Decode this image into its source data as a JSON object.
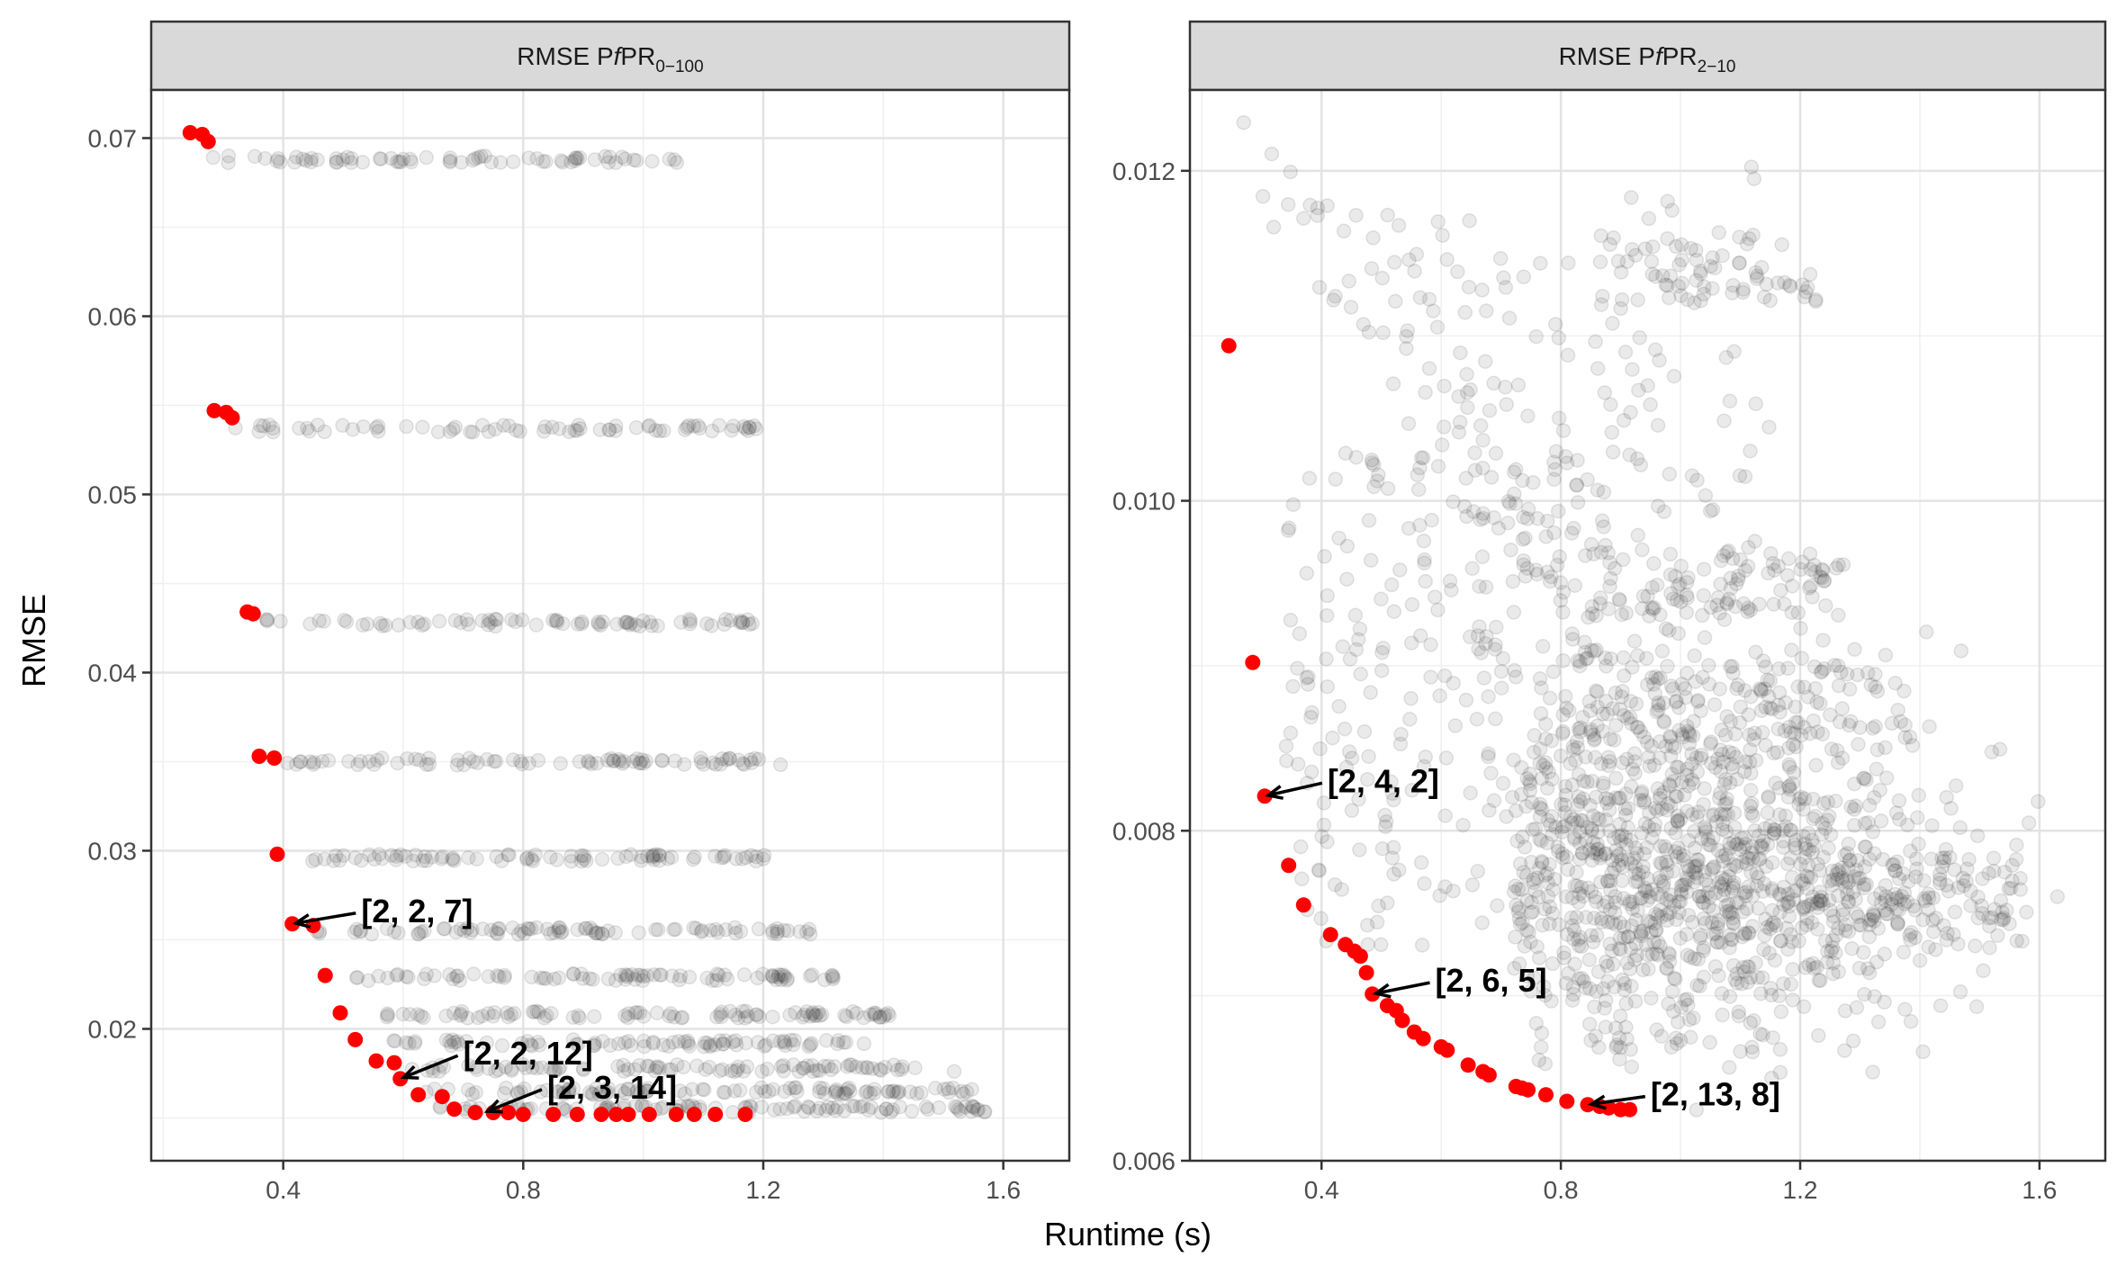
{
  "figure": {
    "xlabel": "Runtime (s)",
    "ylabel": "RMSE"
  },
  "chart_data": [
    {
      "type": "scatter",
      "strip": {
        "prefix": "RMSE P",
        "italic": "f",
        "mid": "PR",
        "subscript": "0−100"
      },
      "xlim": [
        0.18,
        1.71
      ],
      "ylim": [
        0.0126,
        0.0727
      ],
      "x_ticks": [
        0.4,
        0.8,
        1.2,
        1.6
      ],
      "x_tick_labels": [
        "0.4",
        "0.8",
        "1.2",
        "1.6"
      ],
      "y_ticks": [
        0.02,
        0.03,
        0.04,
        0.05,
        0.06,
        0.07
      ],
      "y_tick_labels": [
        "0.02",
        "0.03",
        "0.04",
        "0.05",
        "0.06",
        "0.07"
      ],
      "grid": true,
      "background_bands": [
        {
          "y": 0.0688,
          "x_range": [
            0.27,
            1.06
          ],
          "n": 70
        },
        {
          "y": 0.0537,
          "x_range": [
            0.3,
            1.19
          ],
          "n": 70
        },
        {
          "y": 0.0428,
          "x_range": [
            0.35,
            1.19
          ],
          "n": 75
        },
        {
          "y": 0.035,
          "x_range": [
            0.38,
            1.25
          ],
          "n": 80
        },
        {
          "y": 0.0296,
          "x_range": [
            0.43,
            1.22
          ],
          "n": 80
        },
        {
          "y": 0.0255,
          "x_range": [
            0.45,
            1.28
          ],
          "n": 85
        },
        {
          "y": 0.0229,
          "x_range": [
            0.51,
            1.32
          ],
          "n": 85
        },
        {
          "y": 0.0208,
          "x_range": [
            0.53,
            1.42
          ],
          "n": 90
        },
        {
          "y": 0.0192,
          "x_range": [
            0.57,
            1.38
          ],
          "n": 80
        },
        {
          "y": 0.0178,
          "x_range": [
            0.6,
            1.52
          ],
          "n": 90
        },
        {
          "y": 0.0165,
          "x_range": [
            0.63,
            1.55
          ],
          "n": 100
        },
        {
          "y": 0.0155,
          "x_range": [
            0.66,
            1.57
          ],
          "n": 100
        }
      ],
      "pareto_x": [
        0.245,
        0.265,
        0.275,
        0.285,
        0.305,
        0.315,
        0.34,
        0.35,
        0.36,
        0.385,
        0.39,
        0.415,
        0.45,
        0.47,
        0.495,
        0.52,
        0.555,
        0.585,
        0.595,
        0.625,
        0.665,
        0.685,
        0.72,
        0.75,
        0.775,
        0.8,
        0.85,
        0.89,
        0.93,
        0.955,
        0.975,
        1.01,
        1.055,
        1.085,
        1.12,
        1.17
      ],
      "pareto_y": [
        0.0703,
        0.0702,
        0.0698,
        0.0547,
        0.0546,
        0.0543,
        0.0434,
        0.0433,
        0.0353,
        0.0352,
        0.0298,
        0.0259,
        0.0258,
        0.023,
        0.0209,
        0.0194,
        0.0182,
        0.0181,
        0.0172,
        0.0163,
        0.0162,
        0.0155,
        0.0153,
        0.0153,
        0.0153,
        0.0152,
        0.0152,
        0.0152,
        0.0152,
        0.0152,
        0.0152,
        0.0152,
        0.0152,
        0.0152,
        0.0152,
        0.0152
      ],
      "annotations": [
        {
          "label": "[2, 2, 7]",
          "x": 0.415,
          "y": 0.0259,
          "label_x": 0.53,
          "label_y": 0.0266
        },
        {
          "label": "[2, 2, 12]",
          "x": 0.595,
          "y": 0.0172,
          "label_x": 0.7,
          "label_y": 0.0186
        },
        {
          "label": "[2, 3, 14]",
          "x": 0.735,
          "y": 0.0153,
          "label_x": 0.84,
          "label_y": 0.0167
        }
      ]
    },
    {
      "type": "scatter",
      "strip": {
        "prefix": "RMSE P",
        "italic": "f",
        "mid": "PR",
        "subscript": "2−10"
      },
      "xlim": [
        0.18,
        1.71
      ],
      "ylim": [
        0.006,
        0.01249
      ],
      "x_ticks": [
        0.4,
        0.8,
        1.2,
        1.6
      ],
      "x_tick_labels": [
        "0.4",
        "0.8",
        "1.2",
        "1.6"
      ],
      "y_ticks": [
        0.006,
        0.008,
        0.01,
        0.012
      ],
      "y_tick_labels": [
        "0.006",
        "0.008",
        "0.010",
        "0.012"
      ],
      "grid": true,
      "pareto_x": [
        0.245,
        0.285,
        0.305,
        0.345,
        0.37,
        0.415,
        0.44,
        0.455,
        0.465,
        0.475,
        0.485,
        0.51,
        0.525,
        0.535,
        0.555,
        0.57,
        0.6,
        0.61,
        0.645,
        0.67,
        0.68,
        0.725,
        0.735,
        0.745,
        0.775,
        0.81,
        0.845,
        0.865,
        0.88,
        0.9,
        0.915
      ],
      "pareto_y": [
        0.01094,
        0.00902,
        0.00821,
        0.00779,
        0.00755,
        0.00737,
        0.00731,
        0.00727,
        0.00724,
        0.00714,
        0.00701,
        0.00694,
        0.00691,
        0.00685,
        0.00678,
        0.00674,
        0.00669,
        0.00667,
        0.00658,
        0.00654,
        0.00652,
        0.00645,
        0.00644,
        0.00643,
        0.0064,
        0.00636,
        0.00634,
        0.00633,
        0.00632,
        0.00631,
        0.00631
      ],
      "annotations": [
        {
          "label": "[2, 4, 2]",
          "x": 0.305,
          "y": 0.00821,
          "label_x": 0.41,
          "label_y": 0.0083
        },
        {
          "label": "[2, 6, 5]",
          "x": 0.485,
          "y": 0.00701,
          "label_x": 0.59,
          "label_y": 0.00709
        },
        {
          "label": "[2, 13, 8]",
          "x": 0.845,
          "y": 0.00634,
          "label_x": 0.95,
          "label_y": 0.0064
        }
      ]
    }
  ]
}
